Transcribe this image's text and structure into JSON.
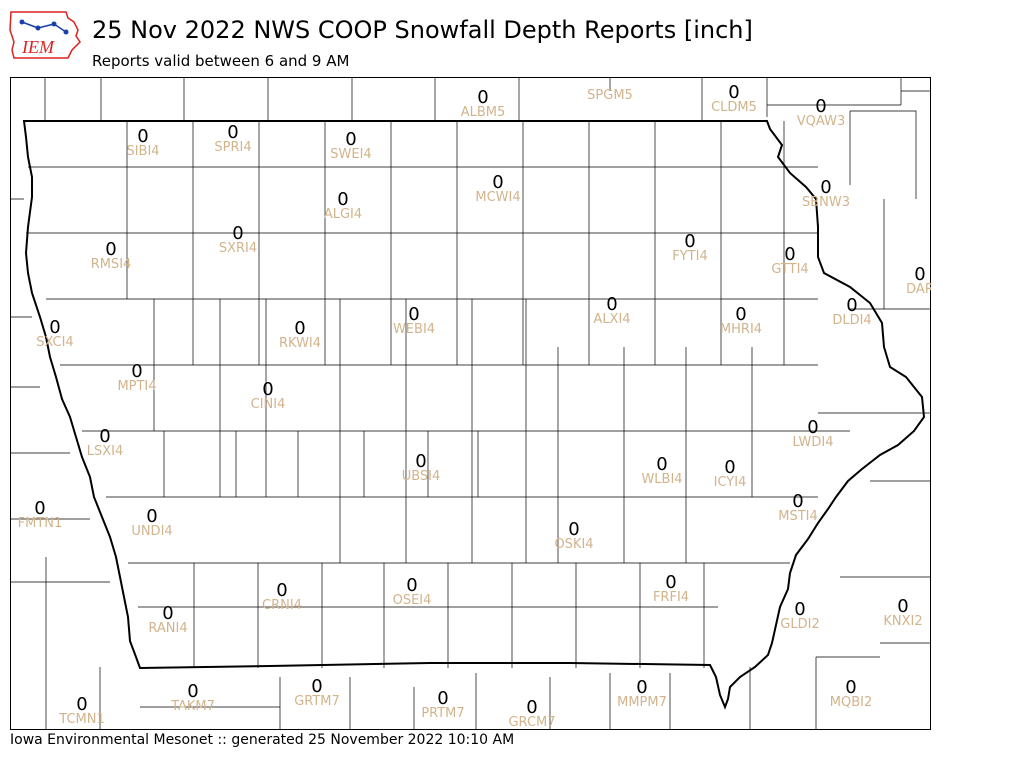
{
  "header": {
    "logo_text": "IEM",
    "title": "25 Nov 2022 NWS COOP Snowfall Depth Reports [inch]",
    "subtitle": "Reports valid between 6 and 9 AM"
  },
  "footer": {
    "text": "Iowa Environmental Mesonet :: generated 25 November 2022 10:10 AM"
  },
  "colors": {
    "station_id": "#d2b48c",
    "value": "#000000",
    "county_lines": "#000000",
    "logo_red": "#d22",
    "logo_blue": "#1a3fa8"
  },
  "stations": [
    {
      "id": "ALBM5",
      "value": "0"
    },
    {
      "id": "SPGM5",
      "value": ""
    },
    {
      "id": "CLDM5",
      "value": "0"
    },
    {
      "id": "VQAW3",
      "value": "0"
    },
    {
      "id": "SIBI4",
      "value": "0"
    },
    {
      "id": "SPRI4",
      "value": "0"
    },
    {
      "id": "SWEI4",
      "value": "0"
    },
    {
      "id": "MCWI4",
      "value": "0"
    },
    {
      "id": "ALGI4",
      "value": "0"
    },
    {
      "id": "SBNW3",
      "value": "0"
    },
    {
      "id": "RMSI4",
      "value": "0"
    },
    {
      "id": "SXRI4",
      "value": "0"
    },
    {
      "id": "FYTI4",
      "value": "0"
    },
    {
      "id": "GTTI4",
      "value": "0"
    },
    {
      "id": "DAR",
      "value": "0"
    },
    {
      "id": "SXCI4",
      "value": "0"
    },
    {
      "id": "RKWI4",
      "value": "0"
    },
    {
      "id": "WEBI4",
      "value": "0"
    },
    {
      "id": "ALXI4",
      "value": "0"
    },
    {
      "id": "MHRI4",
      "value": "0"
    },
    {
      "id": "DLDI4",
      "value": "0"
    },
    {
      "id": "MPTI4",
      "value": "0"
    },
    {
      "id": "CINI4",
      "value": "0"
    },
    {
      "id": "LSXI4",
      "value": "0"
    },
    {
      "id": "LWDI4",
      "value": "0"
    },
    {
      "id": "UBSI4",
      "value": "0"
    },
    {
      "id": "WLBI4",
      "value": "0"
    },
    {
      "id": "ICYI4",
      "value": "0"
    },
    {
      "id": "FMTN1",
      "value": "0"
    },
    {
      "id": "UNDI4",
      "value": "0"
    },
    {
      "id": "MSTI4",
      "value": "0"
    },
    {
      "id": "OSKI4",
      "value": "0"
    },
    {
      "id": "CRNI4",
      "value": "0"
    },
    {
      "id": "OSEI4",
      "value": "0"
    },
    {
      "id": "FRFI4",
      "value": "0"
    },
    {
      "id": "RANI4",
      "value": "0"
    },
    {
      "id": "GLDI2",
      "value": "0"
    },
    {
      "id": "KNXI2",
      "value": "0"
    },
    {
      "id": "TCMN1",
      "value": "0"
    },
    {
      "id": "TAKM7",
      "value": "0"
    },
    {
      "id": "GRTM7",
      "value": "0"
    },
    {
      "id": "PRTM7",
      "value": "0"
    },
    {
      "id": "GRCM7",
      "value": "0"
    },
    {
      "id": "MMPM7",
      "value": "0"
    },
    {
      "id": "MQBI2",
      "value": "0"
    }
  ]
}
